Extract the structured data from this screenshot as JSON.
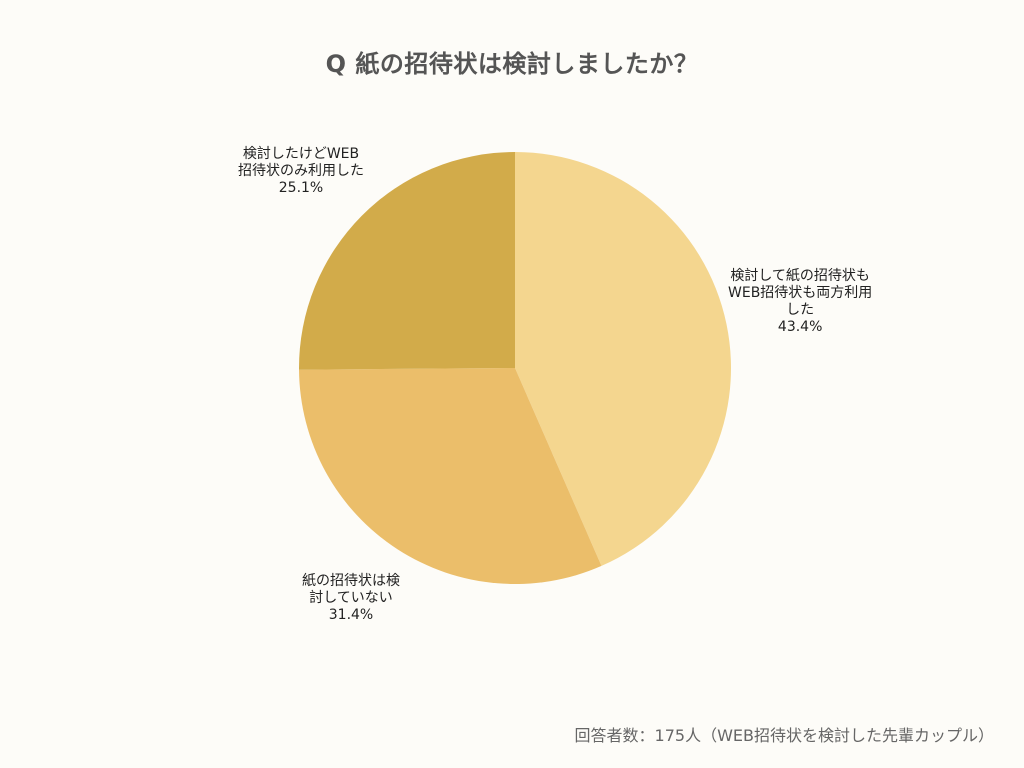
{
  "chart_data": {
    "type": "pie",
    "title": "Q 紙の招待状は検討しましたか？",
    "start": "12 o'clock",
    "direction": "clockwise",
    "slices": [
      {
        "label_lines": [
          "検討して紙の招待状も",
          "WEB招待状も両方利用",
          "した"
        ],
        "value": 43.4,
        "value_label": "43.4%",
        "color": "#f4d68f"
      },
      {
        "label_lines": [
          "紙の招待状は検",
          "討していない"
        ],
        "value": 31.4,
        "value_label": "31.4%",
        "color": "#ebbe6a"
      },
      {
        "label_lines": [
          "検討したけどWEB",
          "招待状のみ利用した"
        ],
        "value": 25.1,
        "value_label": "25.1%",
        "color": "#d2ab4a"
      }
    ]
  },
  "footnote": "回答者数：175人（WEB招待状を検討した先輩カップル）"
}
